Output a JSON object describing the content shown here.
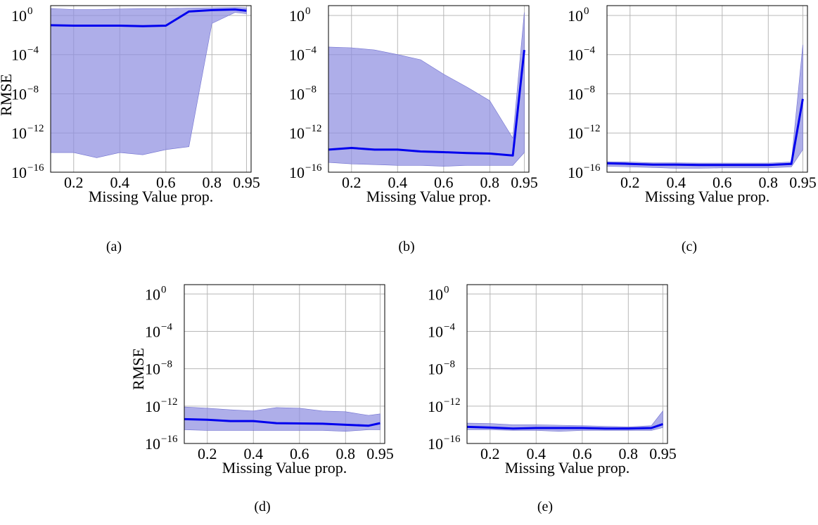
{
  "chart_data": [
    {
      "type": "line",
      "caption": "(a)",
      "xlabel": "Missing Value prop.",
      "ylabel": "RMSE",
      "yscale": "log",
      "xlim": [
        0.1,
        0.97
      ],
      "ylim": [
        1e-16,
        10
      ],
      "xticks": [
        0.2,
        0.4,
        0.6,
        0.8,
        0.95
      ],
      "xticklabels": [
        "0.2",
        "0.4",
        "0.6",
        "0.8",
        "0.95"
      ],
      "yticks": [
        1e-16,
        1e-12,
        1e-08,
        0.0001,
        1
      ],
      "yticklabels": [
        "10",
        "10",
        "10",
        "10",
        "10"
      ],
      "ytickexponents": [
        "−16",
        "−12",
        "−8",
        "−4",
        "0"
      ],
      "grid": true,
      "line_color": "#0000ee",
      "band_color": "#8f8fe0",
      "series": [
        {
          "x": [
            0.1,
            0.2,
            0.3,
            0.4,
            0.5,
            0.6,
            0.7,
            0.8,
            0.9,
            0.95
          ],
          "y": [
            0.1,
            0.09,
            0.09,
            0.09,
            0.08,
            0.09,
            2.5,
            3.5,
            4,
            3
          ],
          "lower": [
            1e-14,
            1e-14,
            3e-15,
            1e-14,
            6e-15,
            2e-14,
            4e-14,
            0.15,
            2,
            1.5
          ],
          "upper": [
            5,
            4,
            4,
            4.5,
            5,
            5,
            5.5,
            6,
            6.5,
            6
          ]
        }
      ]
    },
    {
      "type": "line",
      "caption": "(b)",
      "xlabel": "Missing Value prop.",
      "ylabel": "",
      "yscale": "log",
      "xlim": [
        0.1,
        0.97
      ],
      "ylim": [
        1e-16,
        10
      ],
      "xticks": [
        0.2,
        0.4,
        0.6,
        0.8,
        0.95
      ],
      "xticklabels": [
        "0.2",
        "0.4",
        "0.6",
        "0.8",
        "0.95"
      ],
      "yticks": [
        1e-16,
        1e-12,
        1e-08,
        0.0001,
        1
      ],
      "yticklabels": [
        "10",
        "10",
        "10",
        "10",
        "10"
      ],
      "ytickexponents": [
        "−16",
        "−12",
        "−8",
        "−4",
        "0"
      ],
      "grid": true,
      "line_color": "#0000ee",
      "band_color": "#8f8fe0",
      "series": [
        {
          "x": [
            0.1,
            0.2,
            0.3,
            0.4,
            0.5,
            0.6,
            0.7,
            0.8,
            0.9,
            0.95
          ],
          "y": [
            2e-14,
            3e-14,
            2e-14,
            2e-14,
            1.3e-14,
            1.1e-14,
            9e-15,
            8e-15,
            5e-15,
            0.0003
          ],
          "lower": [
            1e-15,
            7e-16,
            6e-16,
            5e-16,
            5e-16,
            4e-16,
            5e-16,
            5e-16,
            5e-16,
            1e-14
          ],
          "upper": [
            0.0006,
            0.0005,
            0.0003,
            0.0001,
            3e-05,
            1e-06,
            5e-08,
            2e-09,
            3e-13,
            2
          ]
        }
      ]
    },
    {
      "type": "line",
      "caption": "(c)",
      "xlabel": "Missing Value prop.",
      "ylabel": "",
      "yscale": "log",
      "xlim": [
        0.1,
        0.97
      ],
      "ylim": [
        1e-16,
        10
      ],
      "xticks": [
        0.2,
        0.4,
        0.6,
        0.8,
        0.95
      ],
      "xticklabels": [
        "0.2",
        "0.4",
        "0.6",
        "0.8",
        "0.95"
      ],
      "yticks": [
        1e-16,
        1e-12,
        1e-08,
        0.0001,
        1
      ],
      "yticklabels": [
        "10",
        "10",
        "10",
        "10",
        "10"
      ],
      "ytickexponents": [
        "−16",
        "−12",
        "−8",
        "−4",
        "0"
      ],
      "grid": true,
      "line_color": "#0000ee",
      "band_color": "#8f8fe0",
      "series": [
        {
          "x": [
            0.1,
            0.2,
            0.3,
            0.4,
            0.5,
            0.6,
            0.7,
            0.8,
            0.9,
            0.95
          ],
          "y": [
            8e-16,
            7e-16,
            6e-16,
            6e-16,
            5.5e-16,
            5.5e-16,
            5.5e-16,
            5.5e-16,
            7e-16,
            3e-09
          ],
          "lower": [
            4e-16,
            3.5e-16,
            3e-16,
            2.5e-16,
            2.5e-16,
            2.8e-16,
            2.8e-16,
            2.8e-16,
            3.5e-16,
            2e-14
          ],
          "upper": [
            1.2e-15,
            1.1e-15,
            9e-16,
            9e-16,
            8.5e-16,
            8.5e-16,
            8.5e-16,
            8.5e-16,
            1.1e-15,
            0.001
          ]
        }
      ]
    },
    {
      "type": "line",
      "caption": "(d)",
      "xlabel": "Missing Value prop.",
      "ylabel": "RMSE",
      "yscale": "log",
      "xlim": [
        0.1,
        0.97
      ],
      "ylim": [
        1e-16,
        10
      ],
      "xticks": [
        0.2,
        0.4,
        0.6,
        0.8,
        0.95
      ],
      "xticklabels": [
        "0.2",
        "0.4",
        "0.6",
        "0.8",
        "0.95"
      ],
      "yticks": [
        1e-16,
        1e-12,
        1e-08,
        0.0001,
        1
      ],
      "yticklabels": [
        "10",
        "10",
        "10",
        "10",
        "10"
      ],
      "ytickexponents": [
        "−16",
        "−12",
        "−8",
        "−4",
        "0"
      ],
      "grid": true,
      "line_color": "#0000ee",
      "band_color": "#8f8fe0",
      "series": [
        {
          "x": [
            0.1,
            0.2,
            0.3,
            0.4,
            0.5,
            0.6,
            0.7,
            0.8,
            0.9,
            0.95
          ],
          "y": [
            4e-14,
            3.5e-14,
            2.5e-14,
            2.5e-14,
            1.5e-14,
            1.4e-14,
            1.3e-14,
            1e-14,
            8e-15,
            1.5e-14
          ],
          "lower": [
            3e-15,
            2.5e-15,
            2.5e-15,
            2.5e-15,
            2.5e-15,
            2.5e-15,
            2.5e-15,
            2e-15,
            3e-15,
            3e-15
          ],
          "upper": [
            8e-13,
            6e-13,
            4e-13,
            3e-13,
            7e-13,
            6e-13,
            3e-13,
            2.5e-13,
            1e-13,
            1.5e-13
          ]
        }
      ]
    },
    {
      "type": "line",
      "caption": "(e)",
      "xlabel": "Missing Value prop.",
      "ylabel": "",
      "yscale": "log",
      "xlim": [
        0.1,
        0.97
      ],
      "ylim": [
        1e-16,
        10
      ],
      "xticks": [
        0.2,
        0.4,
        0.6,
        0.8,
        0.95
      ],
      "xticklabels": [
        "0.2",
        "0.4",
        "0.6",
        "0.8",
        "0.95"
      ],
      "yticks": [
        1e-16,
        1e-12,
        1e-08,
        0.0001,
        1
      ],
      "yticklabels": [
        "10",
        "10",
        "10",
        "10",
        "10"
      ],
      "ytickexponents": [
        "−16",
        "−12",
        "−8",
        "−4",
        "0"
      ],
      "grid": true,
      "line_color": "#0000ee",
      "band_color": "#8f8fe0",
      "series": [
        {
          "x": [
            0.1,
            0.2,
            0.3,
            0.4,
            0.5,
            0.6,
            0.7,
            0.8,
            0.9,
            0.95
          ],
          "y": [
            6e-15,
            5e-15,
            4e-15,
            4.5e-15,
            4.5e-15,
            4.5e-15,
            4e-15,
            4e-15,
            4.5e-15,
            1.2e-14
          ],
          "lower": [
            3e-15,
            3e-15,
            2.5e-15,
            2.5e-15,
            2e-15,
            2.5e-15,
            2.5e-15,
            2.5e-15,
            2.5e-15,
            5e-15
          ],
          "upper": [
            1.5e-14,
            1.4e-14,
            1e-14,
            1e-14,
            9e-15,
            8e-15,
            7e-15,
            6e-15,
            8e-15,
            3e-13
          ]
        }
      ]
    }
  ]
}
